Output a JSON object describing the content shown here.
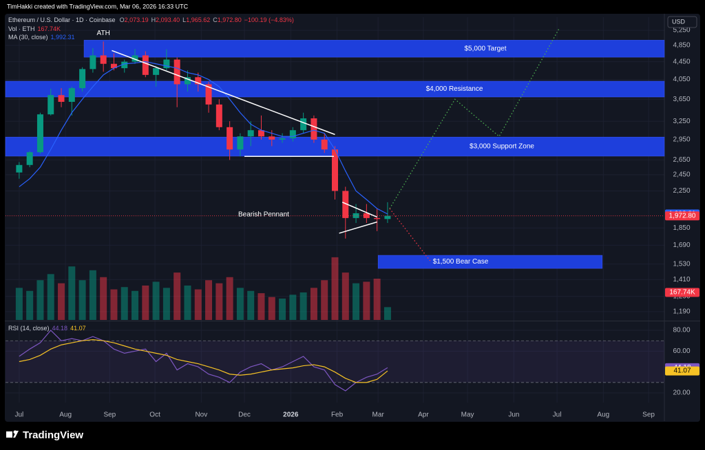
{
  "header": {
    "attribution": "TimHakki created with TradingView.com, Mar 06, 2026 16:33 UTC",
    "symbol": "Ethereum / U.S. Dollar · 1D · Coinbase",
    "ohlc": [
      {
        "key": "O",
        "value": "2,073.19"
      },
      {
        "key": "H",
        "value": "2,093.40"
      },
      {
        "key": "L",
        "value": "1,965.62"
      },
      {
        "key": "C",
        "value": "1,972.80"
      }
    ],
    "change": "−100.19 (−4.83%)",
    "currency": "USD"
  },
  "footer": "TradingView",
  "chart_data": {
    "type": "candlestick",
    "log": true,
    "grid": true,
    "up_color": "#089981",
    "down_color": "#f23645",
    "xlim": [
      -1.3,
      61.3
    ],
    "ylim": [
      1139,
      5627
    ],
    "xticks": [
      {
        "value": 0,
        "label": "Jul"
      },
      {
        "value": 4.4,
        "label": "Aug"
      },
      {
        "value": 8.6,
        "label": "Sep"
      },
      {
        "value": 12.9,
        "label": "Oct"
      },
      {
        "value": 17.3,
        "label": "Nov"
      },
      {
        "value": 21.4,
        "label": "Dec"
      },
      {
        "value": 25.8,
        "label": "2026"
      },
      {
        "value": 30.2,
        "label": "Feb"
      },
      {
        "value": 34.1,
        "label": "Mar"
      },
      {
        "value": 38.4,
        "label": "Apr"
      },
      {
        "value": 42.6,
        "label": "May"
      },
      {
        "value": 47.0,
        "label": "Jun"
      },
      {
        "value": 51.1,
        "label": "Jul"
      },
      {
        "value": 55.5,
        "label": "Aug"
      },
      {
        "value": 59.8,
        "label": "Sep"
      }
    ],
    "yticks": [
      {
        "value": 5250,
        "label": "5,250"
      },
      {
        "value": 4850,
        "label": "4,850"
      },
      {
        "value": 4450,
        "label": "4,450"
      },
      {
        "value": 4050,
        "label": "4,050"
      },
      {
        "value": 3650,
        "label": "3,650"
      },
      {
        "value": 3250,
        "label": "3,250"
      },
      {
        "value": 2950,
        "label": "2,950"
      },
      {
        "value": 2650,
        "label": "2,650"
      },
      {
        "value": 2450,
        "label": "2,450"
      },
      {
        "value": 2250,
        "label": "2,250"
      },
      {
        "value": 1850,
        "label": "1,850"
      },
      {
        "value": 1690,
        "label": "1,690"
      },
      {
        "value": 1530,
        "label": "1,530"
      },
      {
        "value": 1410,
        "label": "1,410"
      },
      {
        "value": 1290,
        "label": "1,290"
      },
      {
        "value": 1190,
        "label": "1,190"
      }
    ],
    "open": [
      2480,
      2580,
      2760,
      3370,
      3730,
      3600,
      3870,
      4280,
      4600,
      4400,
      4300,
      4450,
      4600,
      4150,
      4300,
      4500,
      3950,
      4100,
      3950,
      3550,
      3150,
      2800,
      3000,
      3100,
      3000,
      2950,
      2970,
      3100,
      3300,
      2950,
      2800,
      2250,
      1950,
      2000,
      1950,
      1940
    ],
    "high": [
      2620,
      2780,
      3400,
      3860,
      3870,
      3900,
      4320,
      4780,
      4950,
      4650,
      4500,
      4760,
      4700,
      4350,
      4750,
      4550,
      4250,
      4200,
      4000,
      3650,
      3250,
      3050,
      3250,
      3350,
      3100,
      3050,
      3150,
      3400,
      3350,
      3050,
      2850,
      2300,
      2100,
      2100,
      2050,
      2120
    ],
    "low": [
      2400,
      2550,
      2740,
      3350,
      3500,
      3350,
      3800,
      4200,
      4220,
      4250,
      4200,
      4400,
      4100,
      3900,
      4250,
      3500,
      3800,
      3800,
      3400,
      3100,
      2650,
      2700,
      2850,
      2950,
      2850,
      2900,
      2920,
      3050,
      2900,
      2750,
      2150,
      1750,
      1900,
      1900,
      1820,
      1900
    ],
    "close": [
      2580,
      2760,
      3370,
      3730,
      3600,
      3870,
      4280,
      4600,
      4400,
      4300,
      4450,
      4600,
      4150,
      4300,
      4500,
      3950,
      4100,
      3950,
      3550,
      3150,
      2800,
      3000,
      3100,
      3000,
      2950,
      2970,
      3100,
      3300,
      2950,
      2800,
      2250,
      1950,
      2000,
      1950,
      1940,
      1972.8
    ],
    "last_close_label": "1,972.80",
    "ma": {
      "name": "MA (30, close)",
      "color": "#2962ff",
      "last_label": "1,992.31",
      "values": [
        2300,
        2400,
        2550,
        2800,
        3100,
        3400,
        3650,
        3900,
        4150,
        4300,
        4400,
        4420,
        4450,
        4400,
        4350,
        4300,
        4200,
        4150,
        4050,
        3900,
        3650,
        3400,
        3200,
        3100,
        3050,
        3000,
        3000,
        3050,
        3100,
        3050,
        2800,
        2500,
        2250,
        2150,
        2050,
        1992.31
      ]
    },
    "volume": {
      "name": "Vol · ETH",
      "last_label": "167.74K",
      "vlim": [
        0,
        900
      ],
      "values": [
        420,
        380,
        520,
        600,
        480,
        700,
        520,
        650,
        560,
        400,
        430,
        380,
        450,
        500,
        420,
        620,
        450,
        400,
        520,
        480,
        560,
        420,
        380,
        350,
        300,
        280,
        330,
        360,
        420,
        520,
        820,
        620,
        480,
        500,
        540,
        167.74
      ]
    },
    "zones": [
      {
        "label": "$5,000 Target",
        "range": [
          4557,
          4985
        ],
        "x": [
          6.16,
          61.3
        ],
        "color": "#1e3fdc"
      },
      {
        "label": "$4,000 Resistance",
        "range": [
          3693,
          4015
        ],
        "x": [
          -1.3,
          61.3
        ],
        "color": "#1e3fdc"
      },
      {
        "label": "$3,000 Support Zone",
        "range": [
          2703,
          2990
        ],
        "x": [
          -1.3,
          61.3
        ],
        "color": "#1e3fdc"
      },
      {
        "label": "$1,500 Bear Case",
        "range": [
          1495,
          1602
        ],
        "x": [
          34.1,
          55.4
        ],
        "color": "#1e3fdc"
      }
    ],
    "lines": [
      {
        "color": "#ffffff",
        "style": "solid",
        "points": [
          [
            8.8,
            4720
          ],
          [
            30.0,
            3030
          ]
        ]
      },
      {
        "color": "#ffffff",
        "style": "solid",
        "points": [
          [
            21.4,
            2700
          ],
          [
            29.9,
            2700
          ]
        ]
      },
      {
        "color": "#ffffff",
        "style": "solid",
        "points": [
          [
            30.7,
            2120
          ],
          [
            34.0,
            1960
          ]
        ]
      },
      {
        "color": "#ffffff",
        "style": "solid",
        "points": [
          [
            30.4,
            1800
          ],
          [
            34.0,
            1910
          ]
        ]
      },
      {
        "color": "#4caf50",
        "style": "dotted",
        "points": [
          [
            35.2,
            2050
          ],
          [
            41.4,
            3650
          ],
          [
            45.6,
            3000
          ],
          [
            51.3,
            5300
          ]
        ]
      },
      {
        "color": "#f23645",
        "style": "dotted",
        "points": [
          [
            35.2,
            2050
          ],
          [
            39.1,
            1550
          ]
        ]
      }
    ],
    "annotations": [
      "ATH",
      "Bearish Pennant"
    ],
    "rsi": {
      "name": "RSI (14, close)",
      "color": "#7e57c2",
      "ma_color": "#f7c325",
      "ylim": [
        10.8,
        87.9
      ],
      "bands": [
        70,
        30
      ],
      "yticks": [
        {
          "value": 80,
          "label": "80.00"
        },
        {
          "value": 60,
          "label": "60.00"
        },
        {
          "value": 20,
          "label": "20.00"
        }
      ],
      "values": [
        55,
        62,
        68,
        80,
        70,
        72,
        70,
        74,
        70,
        62,
        58,
        60,
        62,
        50,
        58,
        42,
        48,
        45,
        38,
        35,
        30,
        40,
        45,
        48,
        42,
        45,
        50,
        55,
        45,
        42,
        28,
        22,
        30,
        35,
        38,
        44.18
      ],
      "ma_values": [
        50,
        52,
        56,
        62,
        66,
        68,
        70,
        71,
        70,
        68,
        65,
        62,
        60,
        58,
        56,
        52,
        50,
        48,
        45,
        42,
        38,
        37,
        38,
        40,
        42,
        43,
        44,
        46,
        47,
        45,
        40,
        34,
        30,
        30,
        33,
        41.07
      ]
    }
  }
}
